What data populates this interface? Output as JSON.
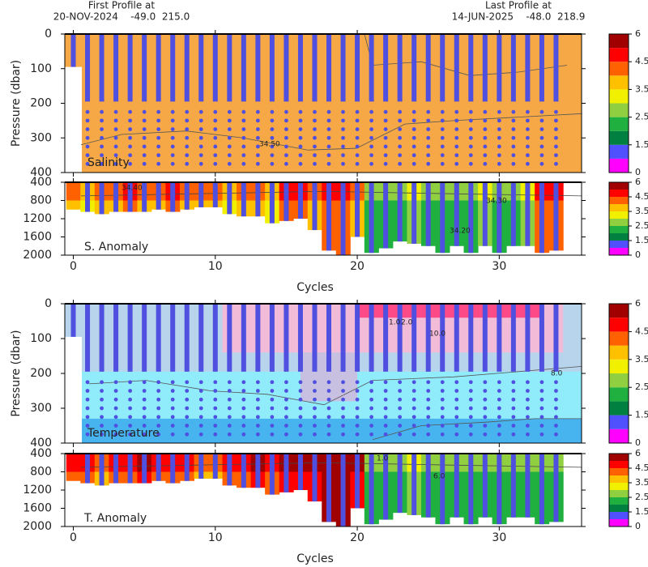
{
  "header": {
    "first_label": "First Profile at",
    "first_info": "20-NOV-2024    -49.0  215.0",
    "last_label": "Last Profile at",
    "last_info": "14-JUN-2025    -48.0  218.9"
  },
  "palette": [
    "#ff00ff",
    "#5050ff",
    "#008040",
    "#20b040",
    "#90d040",
    "#f0f000",
    "#ffc000",
    "#ff6000",
    "#ff0000",
    "#a00000"
  ],
  "profile_cycles": [
    0,
    1,
    2,
    3,
    4,
    5,
    6,
    7,
    8,
    9,
    10,
    11,
    12,
    13,
    14,
    15,
    16,
    17,
    18,
    19,
    20,
    21,
    22,
    23,
    24,
    25,
    26,
    27,
    28,
    29,
    30,
    31,
    32,
    33,
    34
  ],
  "chart_data": [
    {
      "type": "section",
      "panel_label": "Salinity",
      "ylabel": "Pressure (dbar)",
      "ylim": [
        0,
        400
      ],
      "yticks": [
        0,
        100,
        200,
        300,
        400
      ],
      "xlim": [
        -0.6,
        35.8
      ],
      "xticks": [
        0,
        10,
        20,
        30
      ],
      "colorbar_ticks": [
        0,
        1.5,
        2.5,
        3.5,
        4.5,
        6
      ],
      "annotations": [
        "34.50"
      ]
    },
    {
      "type": "anomaly",
      "panel_label": "S. Anomaly",
      "xlabel": "Cycles",
      "ylim": [
        400,
        2000
      ],
      "yticks": [
        400,
        800,
        1200,
        1600,
        2000
      ],
      "xlim": [
        -0.6,
        35.8
      ],
      "xticks": [
        0,
        10,
        20,
        30
      ],
      "colorbar_ticks": [
        0,
        1.5,
        2.5,
        3.5,
        4.5,
        6
      ],
      "annotations": [
        "34.40",
        "34.30",
        "34.20"
      ]
    },
    {
      "type": "section",
      "panel_label": "Temperature",
      "ylabel": "Pressure (dbar)",
      "ylim": [
        0,
        400
      ],
      "yticks": [
        0,
        100,
        200,
        300,
        400
      ],
      "xlim": [
        -0.6,
        35.8
      ],
      "xticks": [
        0,
        10,
        20,
        30
      ],
      "colorbar_ticks": [
        0,
        1.5,
        2.5,
        3.5,
        4.5,
        6
      ],
      "annotations": [
        "1.0",
        "2.0",
        "10.0",
        "8.0"
      ]
    },
    {
      "type": "anomaly",
      "panel_label": "T. Anomaly",
      "xlabel": "Cycles",
      "ylim": [
        400,
        2000
      ],
      "yticks": [
        400,
        800,
        1200,
        1600,
        2000
      ],
      "xlim": [
        -0.6,
        35.8
      ],
      "xticks": [
        0,
        10,
        20,
        30
      ],
      "colorbar_ticks": [
        0,
        1.5,
        2.5,
        3.5,
        4.5,
        6
      ],
      "annotations": [
        "1.0",
        "6.0"
      ]
    }
  ]
}
